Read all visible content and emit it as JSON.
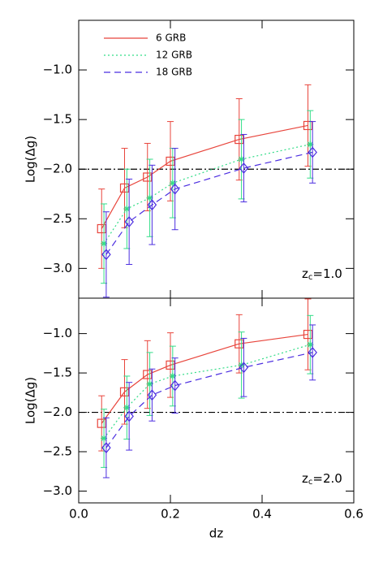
{
  "chart_data": [
    {
      "type": "line",
      "ylabel": "Log(Δg)",
      "annotation": {
        "base": "z",
        "subscript": "c",
        "text": "=1.0"
      },
      "xlim": [
        0,
        0.6
      ],
      "xticks": [
        0,
        0.2,
        0.4,
        0.6
      ],
      "ylim": [
        -3.3,
        -0.5
      ],
      "yticks": [
        {
          "value": -1,
          "label": "−1.0"
        },
        {
          "value": -1.5,
          "label": "−1.5"
        },
        {
          "value": -2,
          "label": "−2.0"
        },
        {
          "value": -2.5,
          "label": "−2.5"
        },
        {
          "value": -3,
          "label": "−3.0"
        }
      ],
      "hline": -2,
      "legend": "upper left",
      "series": [
        {
          "name": "6 GRB",
          "color": "#e8453c",
          "dash": "solid",
          "marker": "square",
          "x": [
            0.05,
            0.1,
            0.15,
            0.2,
            0.35,
            0.5
          ],
          "values": [
            -2.6,
            -2.19,
            -2.08,
            -1.92,
            -1.7,
            -1.56
          ],
          "errors": [
            0.4,
            0.4,
            0.34,
            0.4,
            0.41,
            0.41
          ]
        },
        {
          "name": "12 GRB",
          "color": "#33dd88",
          "dash": "dotted",
          "marker": "asterisk",
          "x": [
            0.055,
            0.105,
            0.155,
            0.205,
            0.355,
            0.505
          ],
          "values": [
            -2.75,
            -2.4,
            -2.29,
            -2.14,
            -1.9,
            -1.75
          ],
          "errors": [
            0.4,
            0.4,
            0.39,
            0.35,
            0.4,
            0.34
          ]
        },
        {
          "name": "18 GRB",
          "color": "#4b2de0",
          "dash": "dashed",
          "marker": "diamond",
          "x": [
            0.06,
            0.11,
            0.16,
            0.21,
            0.36,
            0.51
          ],
          "values": [
            -2.86,
            -2.53,
            -2.36,
            -2.2,
            -1.99,
            -1.83
          ],
          "errors": [
            0.43,
            0.43,
            0.4,
            0.41,
            0.34,
            0.31
          ]
        }
      ]
    },
    {
      "type": "line",
      "ylabel": "Log(Δg)",
      "xlabel": "dz",
      "annotation": {
        "base": "z",
        "subscript": "c",
        "text": "=2.0"
      },
      "xlim": [
        0,
        0.6
      ],
      "xticks": [
        {
          "value": 0,
          "label": "0.0"
        },
        {
          "value": 0.2,
          "label": "0.2"
        },
        {
          "value": 0.4,
          "label": "0.4"
        },
        {
          "value": 0.6,
          "label": "0.6"
        }
      ],
      "ylim": [
        -3.15,
        -0.55
      ],
      "yticks": [
        {
          "value": -1,
          "label": "−1.0"
        },
        {
          "value": -1.5,
          "label": "−1.5"
        },
        {
          "value": -2,
          "label": "−2.0"
        },
        {
          "value": -2.5,
          "label": "−2.5"
        },
        {
          "value": -3,
          "label": "−3.0"
        }
      ],
      "hline": -2,
      "series": [
        {
          "color": "#e8453c",
          "dash": "solid",
          "marker": "square",
          "x": [
            0.05,
            0.1,
            0.15,
            0.2,
            0.35,
            0.5
          ],
          "values": [
            -2.14,
            -1.74,
            -1.52,
            -1.4,
            -1.13,
            -1.01
          ],
          "errors": [
            0.35,
            0.41,
            0.43,
            0.41,
            0.37,
            0.45
          ]
        },
        {
          "color": "#33dd88",
          "dash": "dotted",
          "marker": "asterisk",
          "x": [
            0.055,
            0.105,
            0.155,
            0.205,
            0.355,
            0.505
          ],
          "values": [
            -2.33,
            -1.94,
            -1.64,
            -1.54,
            -1.4,
            -1.14
          ],
          "errors": [
            0.37,
            0.4,
            0.4,
            0.38,
            0.42,
            0.37
          ]
        },
        {
          "color": "#4b2de0",
          "dash": "dashed",
          "marker": "diamond",
          "x": [
            0.06,
            0.11,
            0.16,
            0.21,
            0.36,
            0.51
          ],
          "values": [
            -2.45,
            -2.05,
            -1.78,
            -1.66,
            -1.43,
            -1.24
          ],
          "errors": [
            0.38,
            0.43,
            0.33,
            0.35,
            0.37,
            0.35
          ]
        }
      ]
    }
  ]
}
